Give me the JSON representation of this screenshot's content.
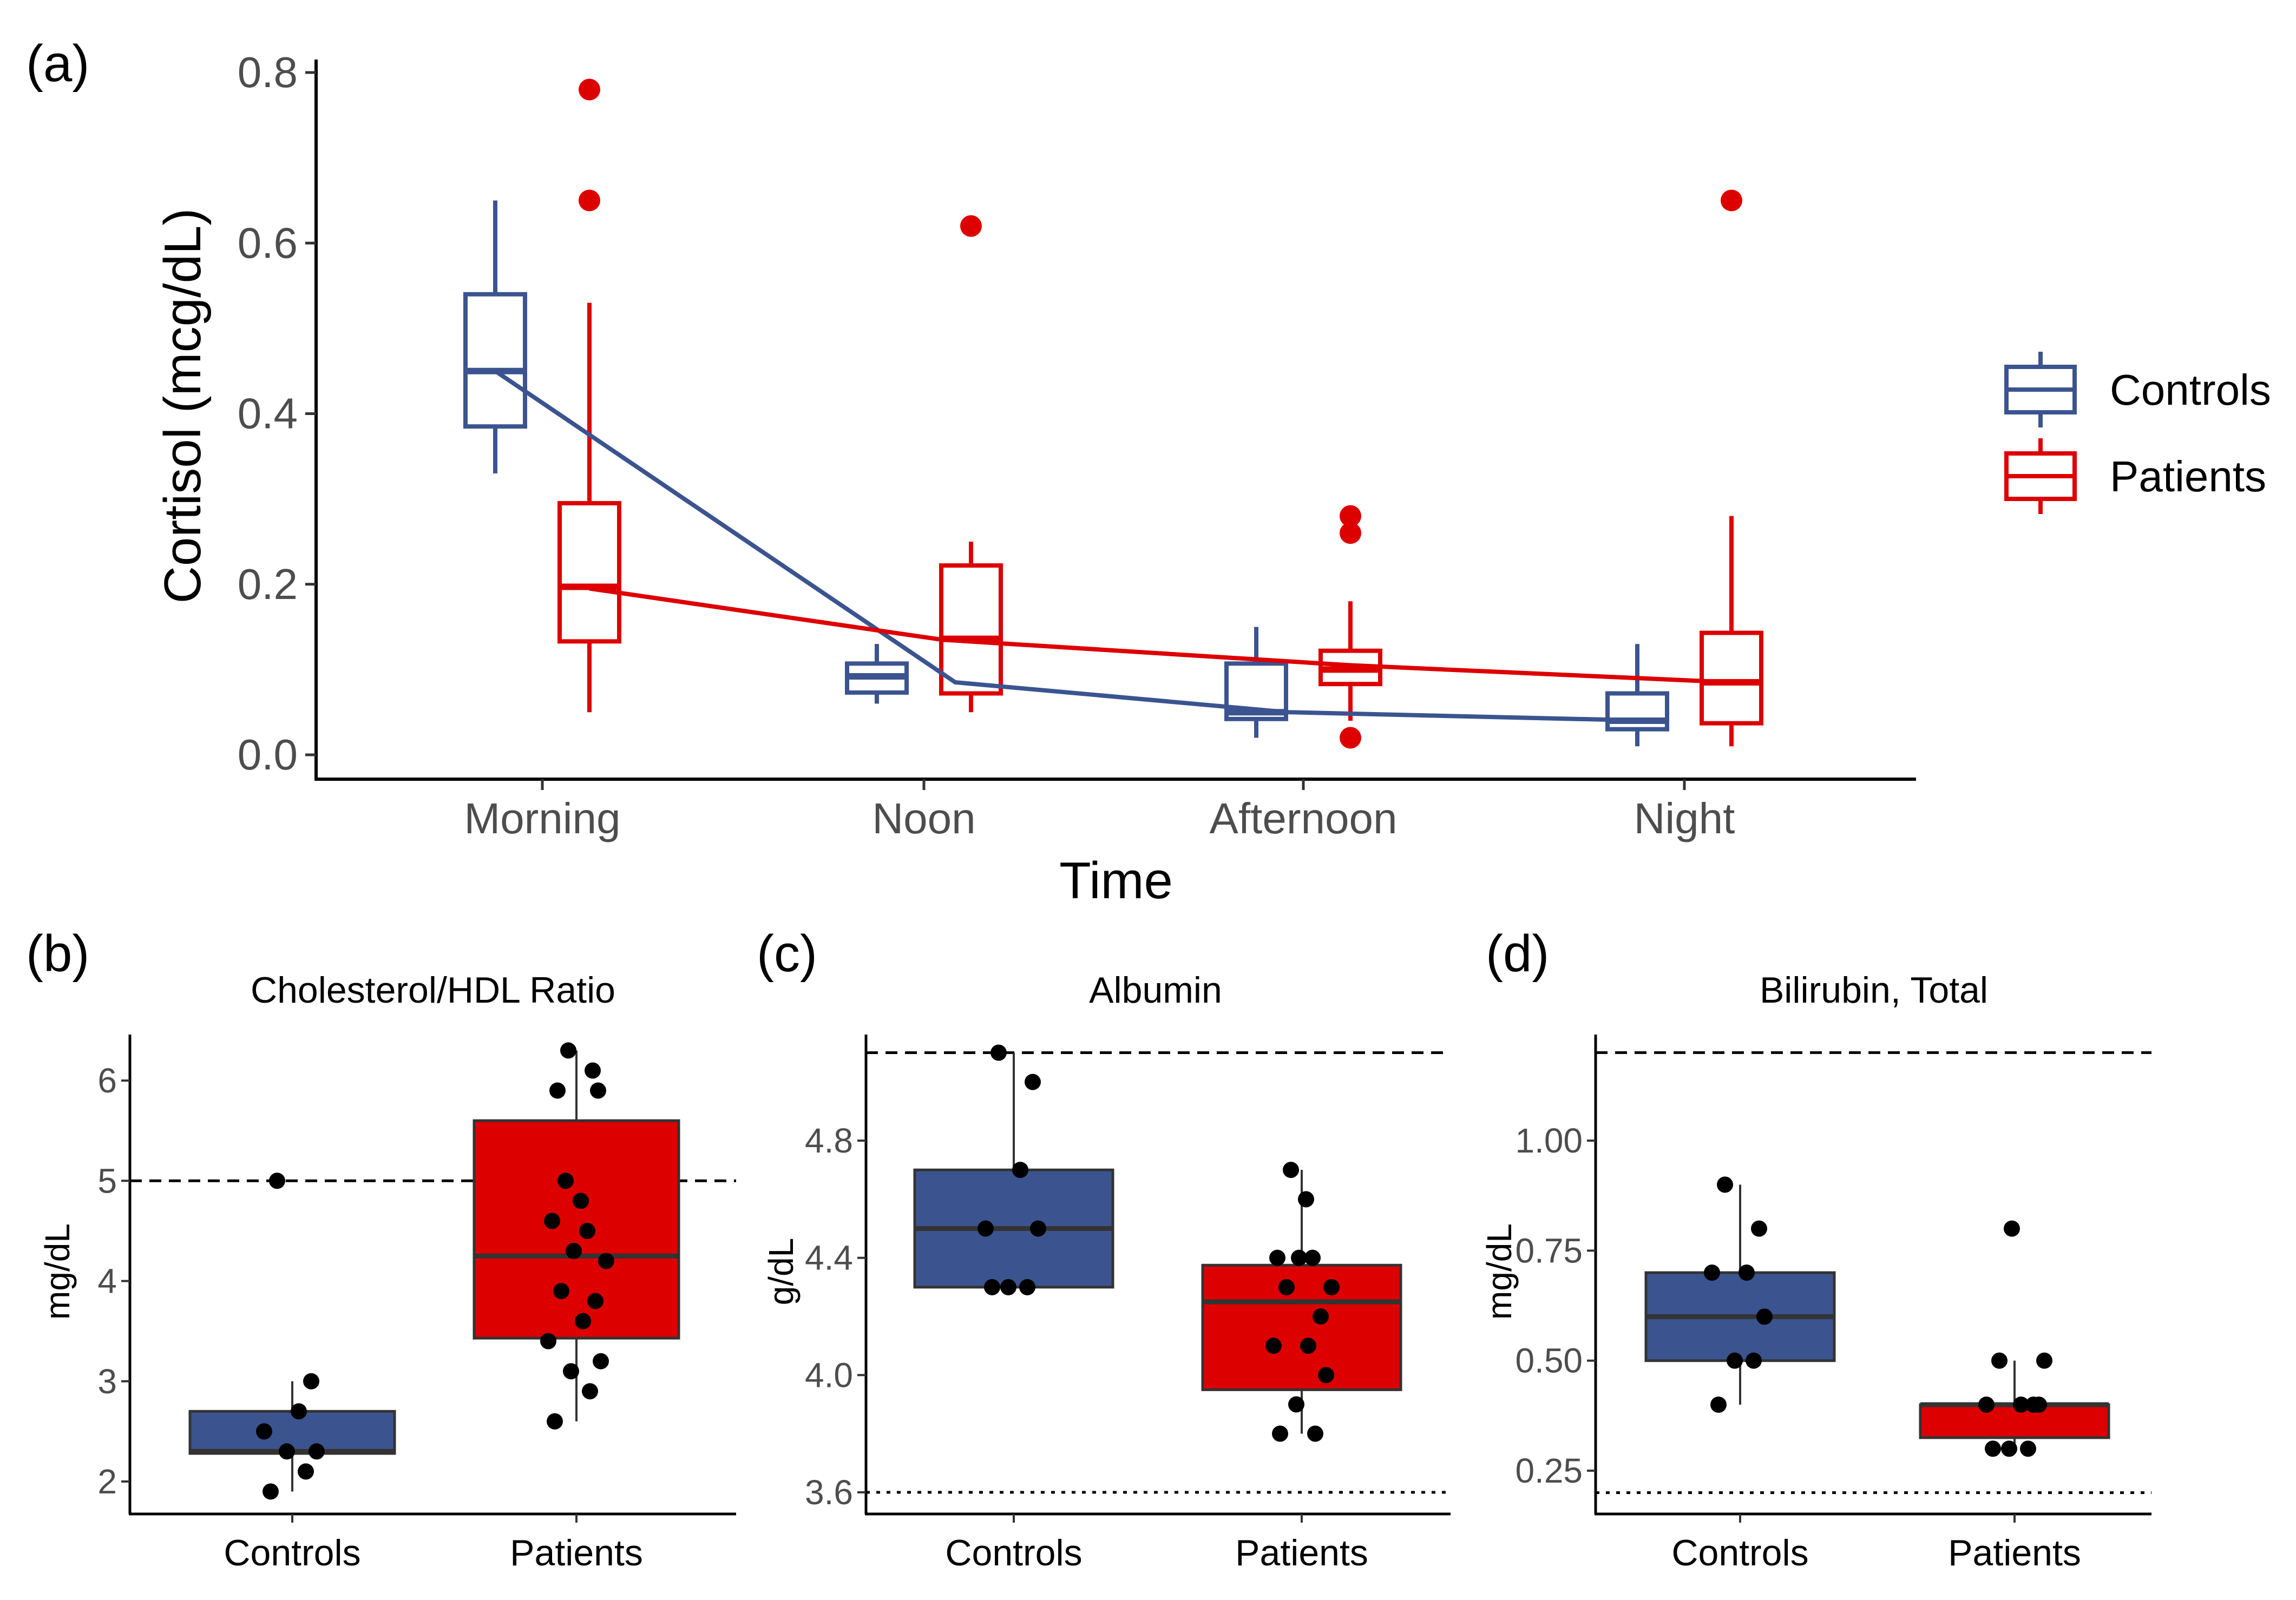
{
  "chart_data": [
    {
      "type": "box",
      "tag": "(a)",
      "xlabel": "Time",
      "ylabel": "Cortisol (mcg/dL)",
      "ylim": [
        -0.02,
        0.82
      ],
      "yticks": [
        0.0,
        0.2,
        0.4,
        0.6,
        0.8
      ],
      "ytick_labels": [
        "0.0",
        "0.2",
        "0.4",
        "0.6",
        "0.8"
      ],
      "categories": [
        "Morning",
        "Noon",
        "Afternoon",
        "Night"
      ],
      "legend": {
        "position": "right",
        "entries": [
          "Controls",
          "Patients"
        ]
      },
      "series": [
        {
          "name": "Controls",
          "color": "#3b5490",
          "boxes": [
            {
              "whisker_low": 0.33,
              "q1": 0.385,
              "median": 0.45,
              "q3": 0.54,
              "whisker_high": 0.65,
              "outliers": []
            },
            {
              "whisker_low": 0.06,
              "q1": 0.073,
              "median": 0.092,
              "q3": 0.107,
              "whisker_high": 0.13,
              "outliers": []
            },
            {
              "whisker_low": 0.02,
              "q1": 0.042,
              "median": 0.05,
              "q3": 0.107,
              "whisker_high": 0.15,
              "outliers": []
            },
            {
              "whisker_low": 0.01,
              "q1": 0.03,
              "median": 0.04,
              "q3": 0.072,
              "whisker_high": 0.13,
              "outliers": []
            }
          ],
          "trend": [
            0.45,
            0.085,
            0.05,
            0.04
          ]
        },
        {
          "name": "Patients",
          "color": "#dd0000",
          "boxes": [
            {
              "whisker_low": 0.05,
              "q1": 0.133,
              "median": 0.197,
              "q3": 0.295,
              "whisker_high": 0.53,
              "outliers": [
                0.78,
                0.65
              ]
            },
            {
              "whisker_low": 0.05,
              "q1": 0.072,
              "median": 0.136,
              "q3": 0.222,
              "whisker_high": 0.25,
              "outliers": [
                0.62
              ]
            },
            {
              "whisker_low": 0.04,
              "q1": 0.083,
              "median": 0.1,
              "q3": 0.122,
              "whisker_high": 0.18,
              "outliers": [
                0.28,
                0.26,
                0.02
              ]
            },
            {
              "whisker_low": 0.01,
              "q1": 0.037,
              "median": 0.085,
              "q3": 0.143,
              "whisker_high": 0.28,
              "outliers": [
                0.65
              ]
            }
          ],
          "trend": [
            0.195,
            0.135,
            0.105,
            0.085
          ]
        }
      ]
    },
    {
      "type": "box",
      "tag": "(b)",
      "title": "Cholesterol/HDL Ratio",
      "ylabel": "mg/dL",
      "ylim": [
        1.6,
        6.5
      ],
      "yticks": [
        2,
        3,
        4,
        5,
        6
      ],
      "ytick_labels": [
        "2",
        "3",
        "4",
        "5",
        "6"
      ],
      "reference_lines": [
        {
          "y": 5.0,
          "style": "dashed"
        }
      ],
      "categories": [
        "Controls",
        "Patients"
      ],
      "series": [
        {
          "name": "Controls",
          "color": "#3b5490",
          "box": {
            "whisker_low": 1.9,
            "q1": 2.28,
            "median": 2.3,
            "q3": 2.7,
            "whisker_high": 3.0
          },
          "points": [
            1.9,
            2.1,
            2.3,
            2.3,
            2.5,
            2.7,
            3.0,
            5.0
          ]
        },
        {
          "name": "Patients",
          "color": "#dd0000",
          "box": {
            "whisker_low": 2.6,
            "q1": 3.43,
            "median": 4.25,
            "q3": 5.6,
            "whisker_high": 6.3
          },
          "points": [
            2.6,
            2.9,
            3.1,
            3.2,
            3.4,
            3.6,
            3.8,
            3.9,
            4.2,
            4.3,
            4.5,
            4.6,
            4.8,
            5.0,
            5.9,
            5.9,
            6.1,
            6.3
          ]
        }
      ]
    },
    {
      "type": "box",
      "tag": "(c)",
      "title": "Albumin",
      "ylabel": "g/dL",
      "ylim": [
        3.52,
        5.12
      ],
      "yticks": [
        3.6,
        4.0,
        4.4,
        4.8
      ],
      "ytick_labels": [
        "3.6",
        "4.0",
        "4.4",
        "4.8"
      ],
      "reference_lines": [
        {
          "y": 5.1,
          "style": "dashed"
        },
        {
          "y": 3.6,
          "style": "dotted"
        }
      ],
      "categories": [
        "Controls",
        "Patients"
      ],
      "series": [
        {
          "name": "Controls",
          "color": "#3b5490",
          "box": {
            "whisker_low": 4.3,
            "q1": 4.3,
            "median": 4.5,
            "q3": 4.7,
            "whisker_high": 5.1
          },
          "points": [
            4.3,
            4.3,
            4.3,
            4.5,
            4.5,
            4.7,
            5.0,
            5.1
          ]
        },
        {
          "name": "Patients",
          "color": "#dd0000",
          "box": {
            "whisker_low": 3.8,
            "q1": 3.95,
            "median": 4.25,
            "q3": 4.375,
            "whisker_high": 4.7
          },
          "points": [
            3.8,
            3.8,
            3.9,
            4.0,
            4.1,
            4.1,
            4.2,
            4.3,
            4.3,
            4.4,
            4.4,
            4.4,
            4.6,
            4.7
          ]
        }
      ]
    },
    {
      "type": "box",
      "tag": "(d)",
      "title": "Bilirubin, Total",
      "ylabel": "mg/dL",
      "ylim": [
        0.18,
        1.22
      ],
      "yticks": [
        0.25,
        0.5,
        0.75,
        1.0
      ],
      "ytick_labels": [
        "0.25",
        "0.50",
        "0.75",
        "1.00"
      ],
      "reference_lines": [
        {
          "y": 1.2,
          "style": "dashed"
        },
        {
          "y": 0.2,
          "style": "dotted"
        }
      ],
      "categories": [
        "Controls",
        "Patients"
      ],
      "series": [
        {
          "name": "Controls",
          "color": "#3b5490",
          "box": {
            "whisker_low": 0.4,
            "q1": 0.5,
            "median": 0.6,
            "q3": 0.7,
            "whisker_high": 0.9
          },
          "points": [
            0.4,
            0.5,
            0.5,
            0.6,
            0.7,
            0.7,
            0.8,
            0.9
          ]
        },
        {
          "name": "Patients",
          "color": "#dd0000",
          "box": {
            "whisker_low": 0.3,
            "q1": 0.325,
            "median": 0.4,
            "q3": 0.4,
            "whisker_high": 0.5
          },
          "points": [
            0.3,
            0.3,
            0.3,
            0.4,
            0.4,
            0.4,
            0.4,
            0.5,
            0.5,
            0.8
          ]
        }
      ]
    }
  ]
}
